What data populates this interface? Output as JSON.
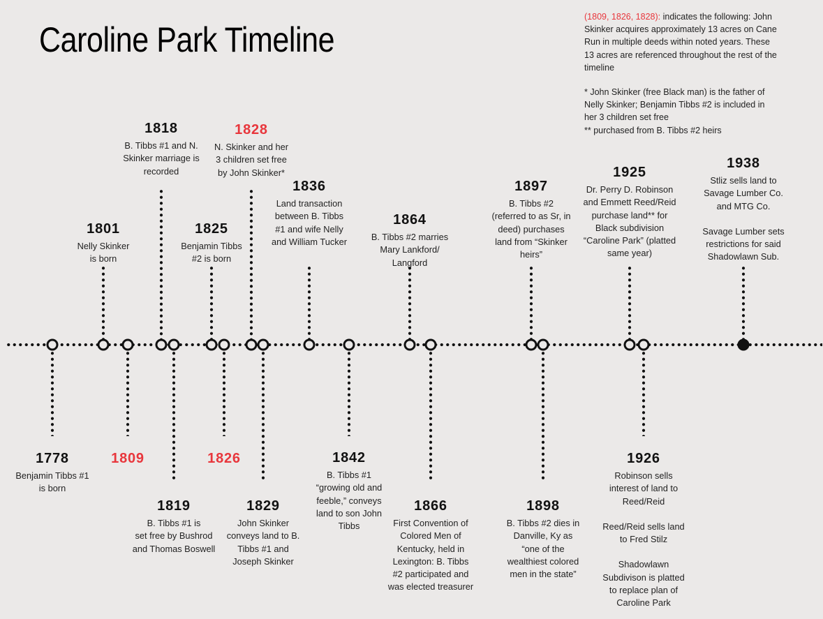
{
  "title": "Caroline Park Timeline",
  "legend": {
    "red_years": "(1809, 1826, 1828):",
    "red_text_lines": [
      " indicates the following: John",
      "Skinker acquires approximately 13 acres on Cane",
      "Run in multiple deeds within noted years. These",
      "13 acres are referenced throughout the rest of the",
      "timeline"
    ],
    "notes": [
      "* John Skinker (free Black man) is the father of",
      "Nelly Skinker; Benjamin Tibbs #2 is included in",
      "her 3 children set free",
      "** purchased from B. Tibbs #2 heirs"
    ]
  },
  "colors": {
    "background": "#ebe9e8",
    "highlight": "#e8363c",
    "ink": "#111111"
  },
  "events": [
    {
      "year": "1778",
      "lines": [
        "Benjamin Tibbs #1",
        "is born"
      ]
    },
    {
      "year": "1801",
      "lines": [
        "Nelly Skinker",
        "is born"
      ]
    },
    {
      "year": "1809",
      "lines": []
    },
    {
      "year": "1818",
      "lines": [
        "B. Tibbs #1 and N.",
        "Skinker marriage is",
        "recorded"
      ]
    },
    {
      "year": "1819",
      "lines": [
        "B. Tibbs #1 is",
        "set free by Bushrod",
        "and Thomas Boswell"
      ]
    },
    {
      "year": "1825",
      "lines": [
        "Benjamin Tibbs",
        "#2 is born"
      ]
    },
    {
      "year": "1826",
      "lines": []
    },
    {
      "year": "1828",
      "lines": [
        "N. Skinker and her",
        "3 children set free",
        "by John Skinker*"
      ]
    },
    {
      "year": "1829",
      "lines": [
        "John Skinker",
        "conveys land to B.",
        "Tibbs #1 and",
        "Joseph Skinker"
      ]
    },
    {
      "year": "1836",
      "lines": [
        "Land transaction",
        "between B. Tibbs",
        "#1 and wife Nelly",
        "and William Tucker"
      ]
    },
    {
      "year": "1842",
      "lines": [
        "B. Tibbs #1",
        "“growing old and",
        "feeble,” conveys",
        "land to son John",
        "Tibbs"
      ]
    },
    {
      "year": "1864",
      "lines": [
        "B. Tibbs #2 marries",
        "Mary Lankford/",
        "Langford"
      ]
    },
    {
      "year": "1866",
      "lines": [
        "First Convention of",
        "Colored Men of",
        "Kentucky, held in",
        "Lexington: B. Tibbs",
        "#2 participated and",
        "was elected treasurer"
      ]
    },
    {
      "year": "1897",
      "lines": [
        "B. Tibbs #2",
        "(referred to as Sr, in",
        "deed) purchases",
        "land from “Skinker",
        "heirs”"
      ]
    },
    {
      "year": "1898",
      "lines": [
        "B. Tibbs #2 dies in",
        "Danville, Ky as",
        "“one of the",
        "wealthiest colored",
        "men in the state”"
      ]
    },
    {
      "year": "1925",
      "lines": [
        "Dr. Perry D. Robinson",
        "and Emmett Reed/Reid",
        "purchase land** for",
        "Black subdivision",
        "“Caroline Park” (platted",
        "same year)"
      ]
    },
    {
      "year": "1926",
      "lines": [
        "Robinson sells",
        "interest of land to",
        "Reed/Reid",
        "",
        "Reed/Reid sells land",
        "to Fred Stilz",
        "",
        "Shadowlawn",
        "Subdivison is platted",
        "to replace plan of",
        "Caroline Park"
      ]
    },
    {
      "year": "1938",
      "lines": [
        "Stliz sells land to",
        "Savage Lumber Co.",
        "and MTG Co.",
        "",
        "Savage Lumber sets",
        "restrictions for said",
        "Shadowlawn Sub."
      ]
    }
  ]
}
